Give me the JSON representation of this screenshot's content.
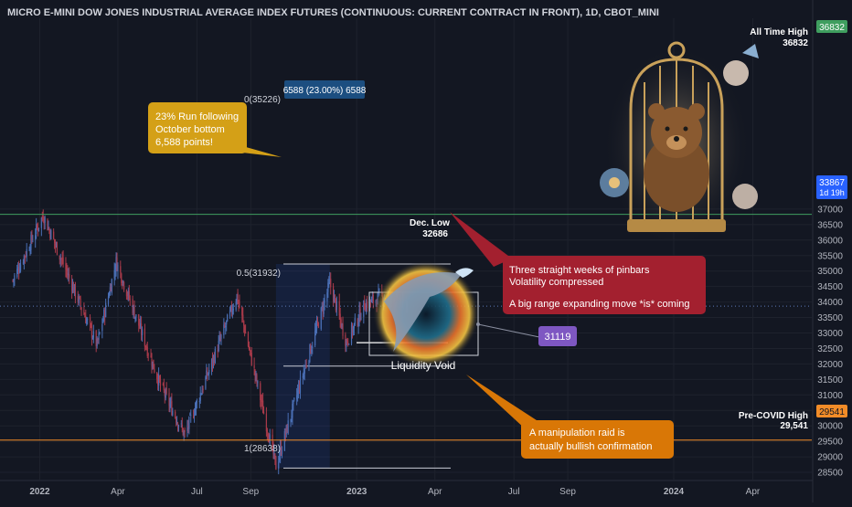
{
  "colors": {
    "background": "#131722",
    "grid": "#1e222d",
    "axis_text": "#b2b5be",
    "up_candle": "#4a6fb5",
    "down_candle": "#a83a4a",
    "ath_line": "#3f9e5f",
    "precovid_line": "#f28c28",
    "current_price_badge": "#2962ff",
    "note_yellow": "#d4a017",
    "note_red": "#a3202f",
    "note_orange": "#d97706",
    "price_box_purple": "#7e57c2",
    "fib_label_box": "#1c4e80"
  },
  "chart_data": {
    "type": "candlestick",
    "title": "MICRO E-MINI DOW JONES INDUSTRIAL AVERAGE INDEX FUTURES (CONTINUOUS: CURRENT CONTRACT IN FRONT), 1D, CBOT_MINI",
    "x_ticks": [
      "2022",
      "Apr",
      "Jul",
      "Sep",
      "2023",
      "Apr",
      "Jul",
      "Sep",
      "2024",
      "Apr"
    ],
    "y_ticks": [
      28500,
      29000,
      29500,
      30000,
      30500,
      31000,
      31500,
      32000,
      32500,
      33000,
      33500,
      34000,
      34500,
      35000,
      35500,
      36000,
      36500,
      37000
    ],
    "ylim": [
      28200,
      37100
    ],
    "date_range": [
      "2021-12-01",
      "2024-05-20"
    ],
    "key_points": [
      {
        "date": "2021-12-01",
        "price": 34700
      },
      {
        "date": "2022-01-05",
        "price": 36800
      },
      {
        "date": "2022-03-08",
        "price": 32600
      },
      {
        "date": "2022-03-30",
        "price": 35300
      },
      {
        "date": "2022-05-20",
        "price": 31300
      },
      {
        "date": "2022-06-17",
        "price": 29700
      },
      {
        "date": "2022-08-16",
        "price": 34200
      },
      {
        "date": "2022-09-30",
        "price": 28700
      },
      {
        "date": "2022-12-01",
        "price": 34600
      },
      {
        "date": "2022-12-20",
        "price": 32700
      },
      {
        "date": "2023-01-10",
        "price": 33900
      },
      {
        "date": "2023-01-31",
        "price": 34200
      },
      {
        "date": "2023-02-28",
        "price": 33900
      }
    ],
    "current_price": {
      "value": "33867",
      "sub": "1d 19h"
    },
    "horizontal_levels": [
      {
        "label": "All Time High",
        "value_text": "36832",
        "axis_badge": "36832",
        "price": 36832
      },
      {
        "label": "Pre-COVID High",
        "value_text": "29,541",
        "axis_badge": "29541",
        "price": 29541
      }
    ],
    "fib_retracement": {
      "top_label": "0(35226)",
      "mid_label": "0.5(31932)",
      "bottom_label": "1(28638)",
      "top": 35226,
      "mid": 31932,
      "bottom": 28638,
      "measure_label": "6588 (23.00%) 6588"
    },
    "dec_low": {
      "label": "Dec. Low",
      "value": "32686",
      "price": 32686
    }
  },
  "annotations": {
    "yellow_note": [
      "23% Run following",
      "October bottom",
      "6,588 points!"
    ],
    "red_note": [
      "Three straight weeks of pinbars",
      "Volatility compressed",
      "",
      "A big range expanding move *is* coming"
    ],
    "orange_note": [
      "A manipulation raid is",
      "actually bullish confirmation"
    ],
    "liquidity_void": "Liquidity Void",
    "target_price": "31119"
  },
  "illustrations": {
    "bear": "bear-in-birdcage-illustration",
    "whale": "whale-splash-illustration"
  }
}
